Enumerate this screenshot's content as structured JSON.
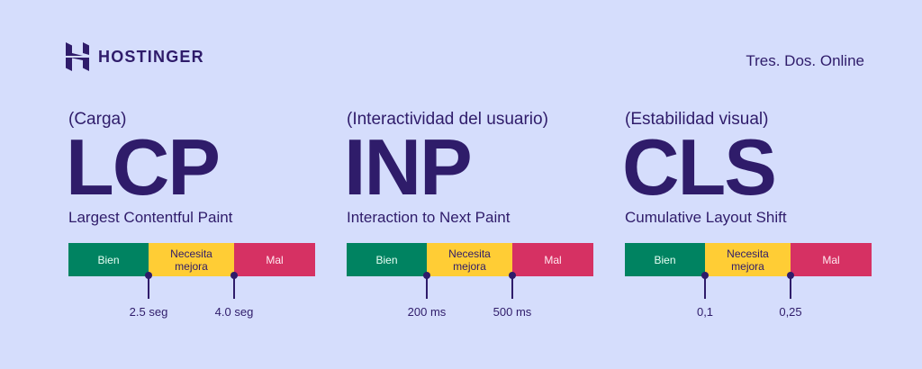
{
  "header": {
    "logo_text": "HOSTINGER",
    "brand": "Tres. Dos. Online"
  },
  "colors": {
    "background": "#d5ddfc",
    "text": "#2f1c6a",
    "good": "#008361",
    "needs_improvement": "#ffcd35",
    "poor": "#d63163"
  },
  "metrics": [
    {
      "category": "(Carga)",
      "abbr": "LCP",
      "full": "Largest Contentful Paint",
      "good": "Bien",
      "mid": "Necesita mejora",
      "bad": "Mal",
      "t1": "2.5 seg",
      "t2": "4.0 seg"
    },
    {
      "category": "(Interactividad del usuario)",
      "abbr": "INP",
      "full": "Interaction to Next Paint",
      "good": "Bien",
      "mid": "Necesita mejora",
      "bad": "Mal",
      "t1": "200 ms",
      "t2": "500 ms"
    },
    {
      "category": "(Estabilidad visual)",
      "abbr": "CLS",
      "full": "Cumulative Layout Shift",
      "good": "Bien",
      "mid": "Necesita mejora",
      "bad": "Mal",
      "t1": "0,1",
      "t2": "0,25"
    }
  ]
}
